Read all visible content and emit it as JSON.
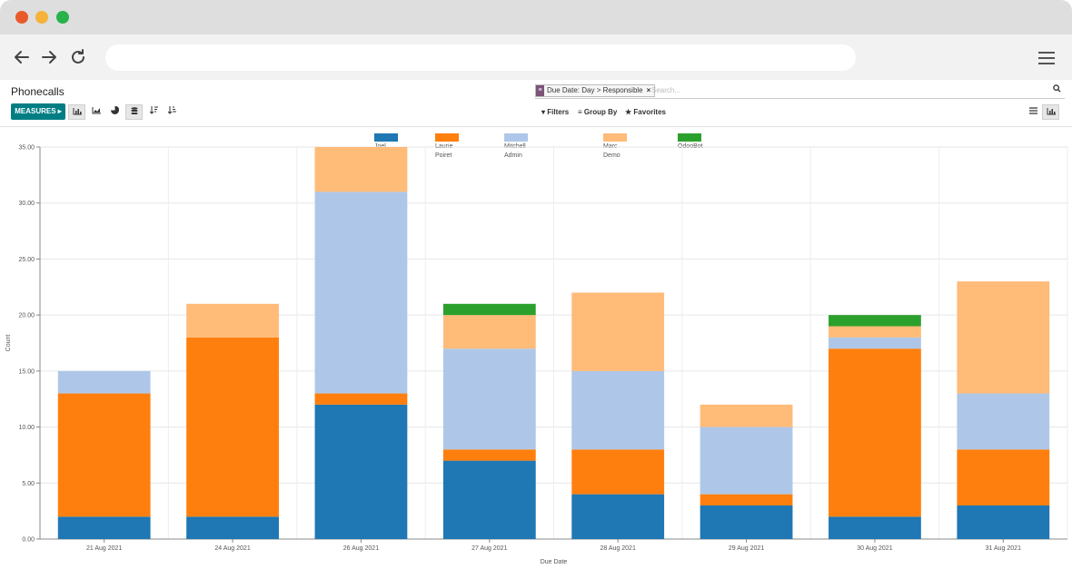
{
  "browser": {
    "back_icon": "arrow-left-icon",
    "forward_icon": "arrow-right-icon",
    "reload_icon": "reload-icon",
    "menu_icon": "hamburger-icon",
    "url": ""
  },
  "control_panel": {
    "breadcrumb": "Phonecalls",
    "facet_label": "Due Date: Day > Responsible",
    "facet_close": "×",
    "search_placeholder": "Search...",
    "measures_label": "MEASURES ▸",
    "filters_label": "Filters",
    "groupby_label": "Group By",
    "favorites_label": "Favorites"
  },
  "chart_data": {
    "type": "bar",
    "stacked": true,
    "xlabel": "Due Date",
    "ylabel": "Count",
    "ylim": [
      0,
      35
    ],
    "yticks": [
      "0.00",
      "5.00",
      "10.00",
      "15.00",
      "20.00",
      "25.00",
      "30.00",
      "35.00"
    ],
    "grid": true,
    "legend_position": "top",
    "categories": [
      "21 Aug 2021",
      "24 Aug 2021",
      "26 Aug 2021",
      "27 Aug 2021",
      "28 Aug 2021",
      "29 Aug 2021",
      "30 Aug 2021",
      "31 Aug 2021"
    ],
    "series": [
      {
        "name": "Joel Willis",
        "color": "#1f77b4",
        "values": [
          2,
          2,
          12,
          7,
          4,
          3,
          2,
          3
        ]
      },
      {
        "name": "Laurie Poiret",
        "color": "#ff7f0e",
        "values": [
          11,
          16,
          1,
          1,
          4,
          1,
          15,
          5
        ]
      },
      {
        "name": "Mitchell Admin",
        "color": "#aec7e8",
        "values": [
          2,
          0,
          18,
          9,
          7,
          6,
          1,
          5
        ]
      },
      {
        "name": "Marc Demo",
        "color": "#ffbb78",
        "values": [
          0,
          3,
          4,
          3,
          7,
          2,
          1,
          10
        ]
      },
      {
        "name": "OdooBot",
        "color": "#2ca02c",
        "values": [
          0,
          0,
          0,
          1,
          0,
          0,
          1,
          0
        ]
      }
    ]
  }
}
